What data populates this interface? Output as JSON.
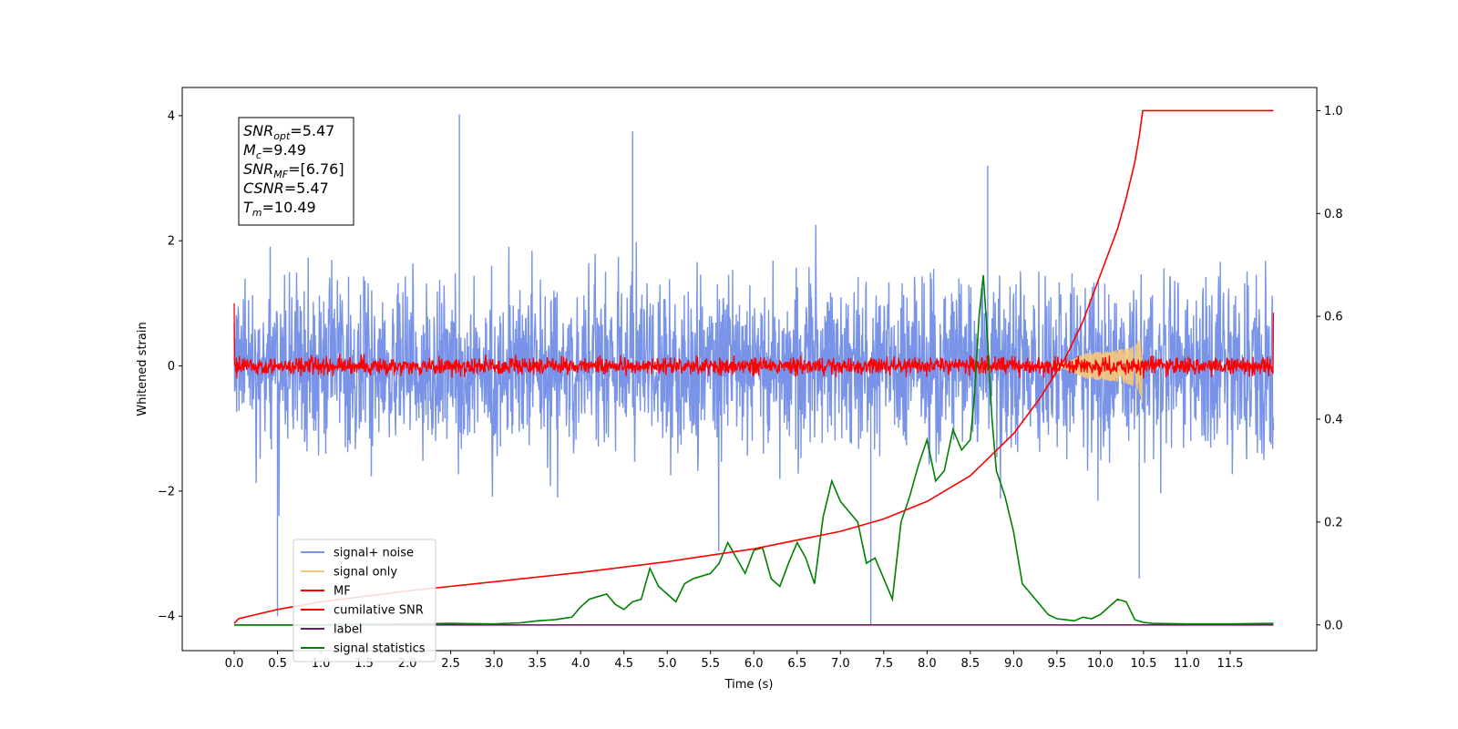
{
  "chart_data": {
    "type": "line",
    "xlabel": "Time (s)",
    "ylabel": "Whitened strain",
    "xlim": [
      -0.6,
      12.5
    ],
    "ylim": [
      -4.55,
      4.45
    ],
    "ylim_right": [
      -0.05,
      1.045
    ],
    "x_ticks": [
      0.0,
      0.5,
      1.0,
      1.5,
      2.0,
      2.5,
      3.0,
      3.5,
      4.0,
      4.5,
      5.0,
      5.5,
      6.0,
      6.5,
      7.0,
      7.5,
      8.0,
      8.5,
      9.0,
      9.5,
      10.0,
      10.5,
      11.0,
      11.5
    ],
    "x_tick_labels": [
      "0.0",
      "0.5",
      "1.0",
      "1.5",
      "2.0",
      "2.5",
      "3.0",
      "3.5",
      "4.0",
      "4.5",
      "5.0",
      "5.5",
      "6.0",
      "6.5",
      "7.0",
      "7.5",
      "8.0",
      "8.5",
      "9.0",
      "9.5",
      "10.0",
      "10.5",
      "11.0",
      "11.5"
    ],
    "y_ticks": [
      -4,
      -2,
      0,
      2,
      4
    ],
    "y_tick_labels": [
      "−4",
      "−2",
      "0",
      "2",
      "4"
    ],
    "y_right_ticks": [
      0.0,
      0.2,
      0.4,
      0.6,
      0.8,
      1.0
    ],
    "y_right_tick_labels": [
      "0.0",
      "0.2",
      "0.4",
      "0.6",
      "0.8",
      "1.0"
    ],
    "grid": false,
    "legend_position": "lower-left",
    "annotation": {
      "lines": [
        {
          "main": "SNR",
          "sub": "opt",
          "rest": "=5.47"
        },
        {
          "main": "M",
          "sub": "c",
          "rest": "=9.49"
        },
        {
          "main": "SNR",
          "sub": "MF",
          "rest": "=[6.76]"
        },
        {
          "main": "CSNR",
          "sub": "",
          "rest": "=5.47"
        },
        {
          "main": "T",
          "sub": "m",
          "rest": "=10.49"
        }
      ]
    },
    "series": [
      {
        "name": "signal+ noise",
        "color": "#7893e8",
        "axis": "left",
        "kind": "noise_band",
        "x_range": [
          0.0,
          12.0
        ],
        "center": 0.0,
        "typical_range": [
          -1.8,
          1.8
        ],
        "extremes": [
          -4.15,
          4.02
        ]
      },
      {
        "name": "signal only",
        "color": "#f7c97c",
        "axis": "left",
        "kind": "chirp",
        "x_range": [
          9.5,
          10.5
        ],
        "peak_amplitude": 0.75,
        "merger_time": 10.49
      },
      {
        "name": "MF",
        "color": "#ff0000",
        "axis": "left",
        "kind": "noise_band",
        "x_range": [
          0.0,
          12.0
        ],
        "center": 0.0,
        "typical_range": [
          -0.18,
          0.18
        ],
        "edge_values": [
          1.0,
          0.85
        ]
      },
      {
        "name": "cumilative SNR",
        "color": "#ff0000",
        "axis": "right",
        "x": [
          0.0,
          0.05,
          0.5,
          1.0,
          2.0,
          3.0,
          4.0,
          5.0,
          6.0,
          7.0,
          7.5,
          8.0,
          8.5,
          9.0,
          9.3,
          9.6,
          9.8,
          10.0,
          10.2,
          10.3,
          10.4,
          10.45,
          10.49,
          12.0
        ],
        "values": [
          0.003,
          0.012,
          0.03,
          0.045,
          0.066,
          0.084,
          0.102,
          0.123,
          0.148,
          0.182,
          0.206,
          0.24,
          0.29,
          0.372,
          0.44,
          0.52,
          0.59,
          0.68,
          0.77,
          0.83,
          0.9,
          0.95,
          1.0,
          1.0
        ]
      },
      {
        "name": "label",
        "color": "#6a1b6a",
        "axis": "right",
        "x": [
          0.0,
          12.0
        ],
        "values": [
          0.0,
          0.0
        ]
      },
      {
        "name": "signal statistics",
        "color": "#008000",
        "axis": "right",
        "x": [
          0.0,
          0.5,
          1.0,
          1.5,
          2.0,
          2.5,
          3.0,
          3.3,
          3.5,
          3.7,
          3.9,
          4.0,
          4.1,
          4.2,
          4.3,
          4.4,
          4.5,
          4.6,
          4.7,
          4.8,
          4.9,
          5.0,
          5.1,
          5.2,
          5.3,
          5.4,
          5.5,
          5.6,
          5.7,
          5.8,
          5.9,
          6.0,
          6.1,
          6.2,
          6.3,
          6.4,
          6.5,
          6.6,
          6.7,
          6.8,
          6.9,
          7.0,
          7.1,
          7.2,
          7.3,
          7.4,
          7.5,
          7.6,
          7.7,
          7.8,
          7.9,
          8.0,
          8.1,
          8.2,
          8.3,
          8.4,
          8.5,
          8.55,
          8.6,
          8.65,
          8.7,
          8.75,
          8.8,
          8.9,
          9.0,
          9.1,
          9.2,
          9.3,
          9.4,
          9.5,
          9.6,
          9.7,
          9.8,
          9.9,
          10.0,
          10.1,
          10.2,
          10.3,
          10.4,
          10.5,
          10.6,
          11.0,
          11.5,
          12.0
        ],
        "values": [
          0.0,
          0.0,
          0.0,
          0.001,
          0.002,
          0.003,
          0.002,
          0.004,
          0.008,
          0.01,
          0.015,
          0.035,
          0.05,
          0.055,
          0.06,
          0.04,
          0.03,
          0.045,
          0.05,
          0.11,
          0.075,
          0.06,
          0.045,
          0.08,
          0.09,
          0.095,
          0.1,
          0.12,
          0.16,
          0.13,
          0.1,
          0.145,
          0.15,
          0.09,
          0.075,
          0.12,
          0.16,
          0.13,
          0.08,
          0.21,
          0.28,
          0.24,
          0.22,
          0.2,
          0.12,
          0.13,
          0.09,
          0.05,
          0.2,
          0.25,
          0.31,
          0.36,
          0.28,
          0.3,
          0.38,
          0.34,
          0.36,
          0.45,
          0.6,
          0.68,
          0.55,
          0.4,
          0.3,
          0.25,
          0.18,
          0.08,
          0.06,
          0.04,
          0.02,
          0.012,
          0.01,
          0.008,
          0.015,
          0.012,
          0.02,
          0.035,
          0.05,
          0.045,
          0.01,
          0.005,
          0.003,
          0.002,
          0.002,
          0.003
        ]
      }
    ]
  }
}
